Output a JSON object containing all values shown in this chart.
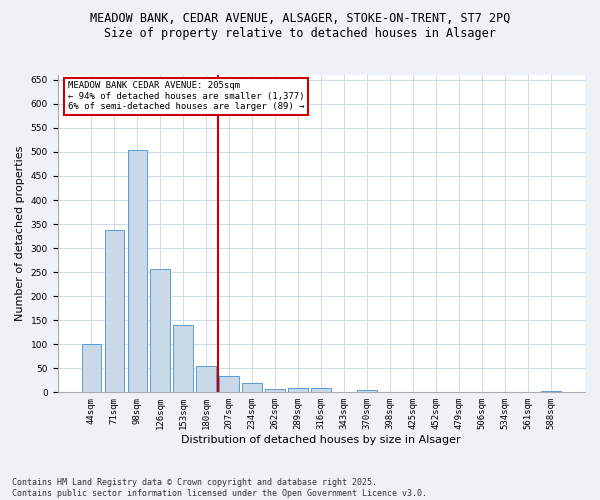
{
  "title_line1": "MEADOW BANK, CEDAR AVENUE, ALSAGER, STOKE-ON-TRENT, ST7 2PQ",
  "title_line2": "Size of property relative to detached houses in Alsager",
  "xlabel": "Distribution of detached houses by size in Alsager",
  "ylabel": "Number of detached properties",
  "categories": [
    "44sqm",
    "71sqm",
    "98sqm",
    "126sqm",
    "153sqm",
    "180sqm",
    "207sqm",
    "234sqm",
    "262sqm",
    "289sqm",
    "316sqm",
    "343sqm",
    "370sqm",
    "398sqm",
    "425sqm",
    "452sqm",
    "479sqm",
    "506sqm",
    "534sqm",
    "561sqm",
    "588sqm"
  ],
  "values": [
    100,
    338,
    505,
    257,
    140,
    55,
    35,
    20,
    6,
    10,
    10,
    0,
    5,
    0,
    0,
    0,
    0,
    0,
    0,
    0,
    3
  ],
  "bar_color": "#c9d9e8",
  "bar_edge_color": "#5b9bd5",
  "vline_x": 5.5,
  "vline_color": "#cc0000",
  "annotation_text": "MEADOW BANK CEDAR AVENUE: 205sqm\n← 94% of detached houses are smaller (1,377)\n6% of semi-detached houses are larger (89) →",
  "annotation_box_color": "#ffffff",
  "annotation_box_edge_color": "#cc0000",
  "ylim": [
    0,
    660
  ],
  "yticks": [
    0,
    50,
    100,
    150,
    200,
    250,
    300,
    350,
    400,
    450,
    500,
    550,
    600,
    650
  ],
  "footer_line1": "Contains HM Land Registry data © Crown copyright and database right 2025.",
  "footer_line2": "Contains public sector information licensed under the Open Government Licence v3.0.",
  "background_color": "#eef2f7",
  "plot_background_color": "#ffffff",
  "grid_color": "#c5d5e8",
  "title_fontsize": 8.5,
  "subtitle_fontsize": 8.5,
  "tick_fontsize": 6.5,
  "label_fontsize": 8,
  "footer_fontsize": 6
}
